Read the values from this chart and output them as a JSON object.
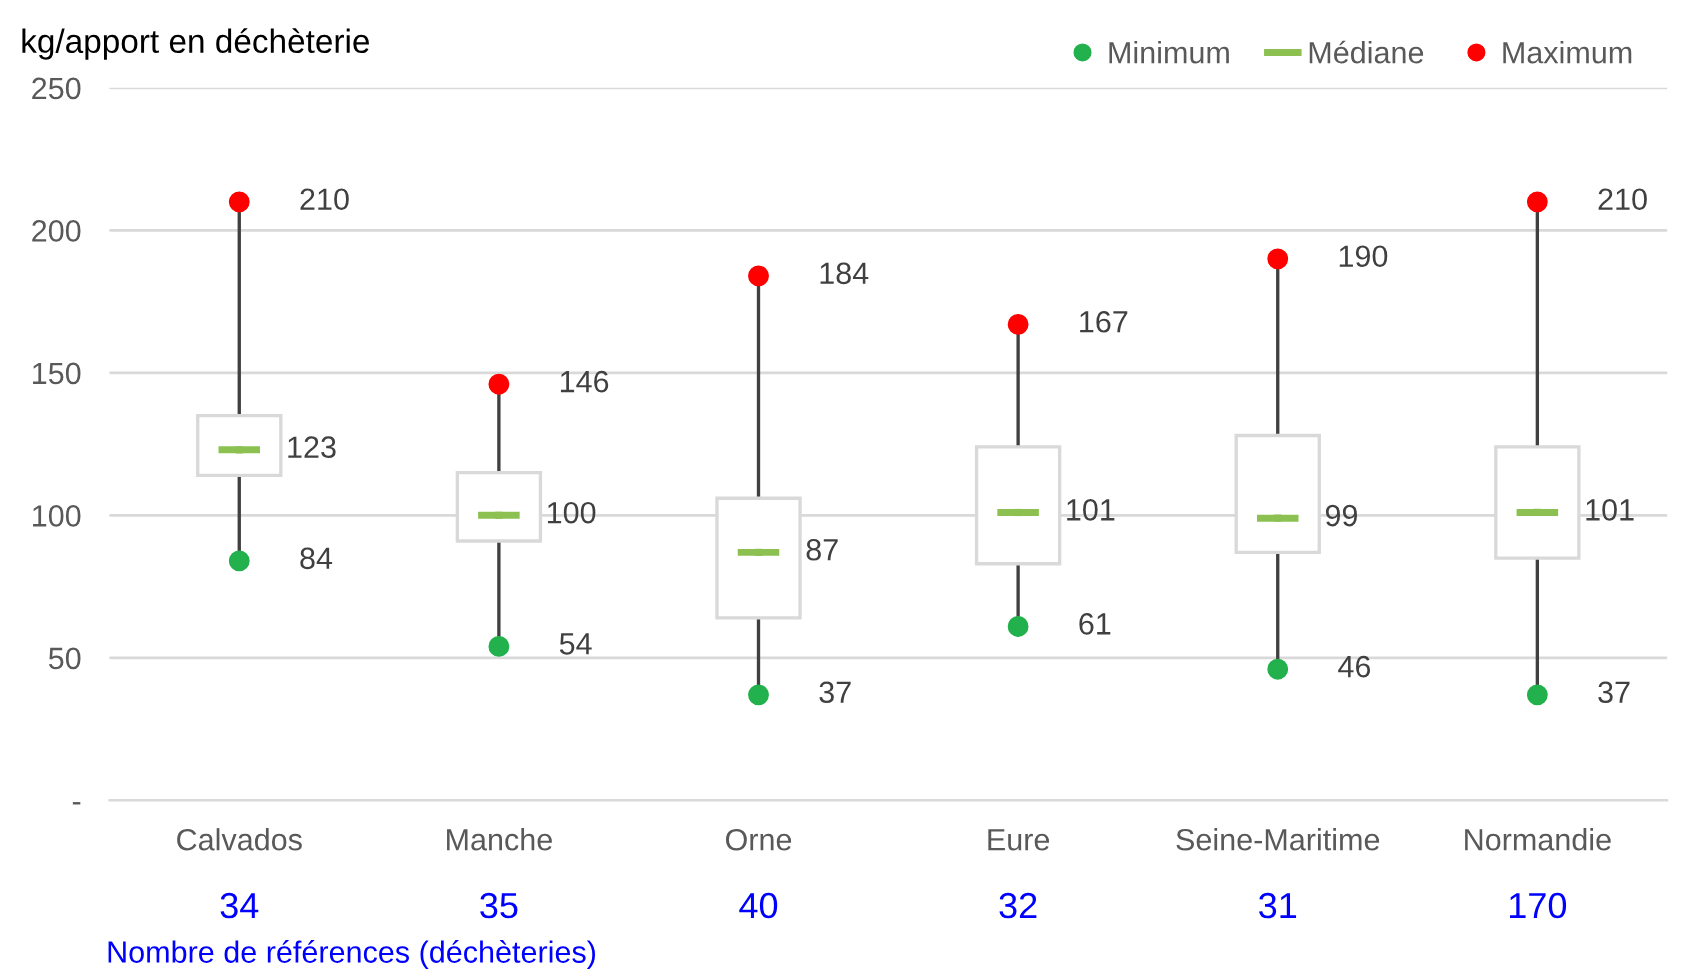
{
  "chart_data": {
    "type": "box",
    "ylabel": "kg/apport en déchèterie",
    "categories": [
      "Calvados",
      "Manche",
      "Orne",
      "Eure",
      "Seine-Maritime",
      "Normandie"
    ],
    "series": [
      {
        "type": "box",
        "color": "#ffffff",
        "boxes": [
          {
            "low": 84,
            "q1": 114,
            "median": 123,
            "q3": 135,
            "high": 210
          },
          {
            "low": 54,
            "q1": 91,
            "median": 100,
            "q3": 115,
            "high": 146
          },
          {
            "low": 37,
            "q1": 64,
            "median": 87,
            "q3": 106,
            "high": 184
          },
          {
            "low": 61,
            "q1": 83,
            "median": 101,
            "q3": 124,
            "high": 167
          },
          {
            "low": 46,
            "q1": 87,
            "median": 99,
            "q3": 128,
            "high": 190
          },
          {
            "low": 37,
            "q1": 85,
            "median": 101,
            "q3": 124,
            "high": 210
          }
        ]
      },
      {
        "name": "Minimum",
        "type": "scatter",
        "marker": "circle",
        "color": "#22b14c",
        "values": [
          84,
          54,
          37,
          61,
          46,
          37
        ]
      },
      {
        "name": "Médiane",
        "type": "scatter",
        "marker": "square",
        "color": "#8cc152",
        "values": [
          123,
          100,
          87,
          101,
          99,
          101
        ]
      },
      {
        "name": "Maximum",
        "type": "scatter",
        "marker": "circle",
        "color": "#ff0000",
        "values": [
          210,
          146,
          184,
          167,
          190,
          210
        ]
      }
    ],
    "data_labels": true,
    "ylim": [
      0,
      250
    ],
    "yticks": [
      {
        "value": 0,
        "label": "-"
      },
      50,
      100,
      150,
      200,
      250
    ],
    "grid": "y",
    "legend": "top right",
    "annotations": [
      "34",
      "35",
      "40",
      "32",
      "31",
      "170",
      "Nombre de références (déchèteries)"
    ]
  }
}
